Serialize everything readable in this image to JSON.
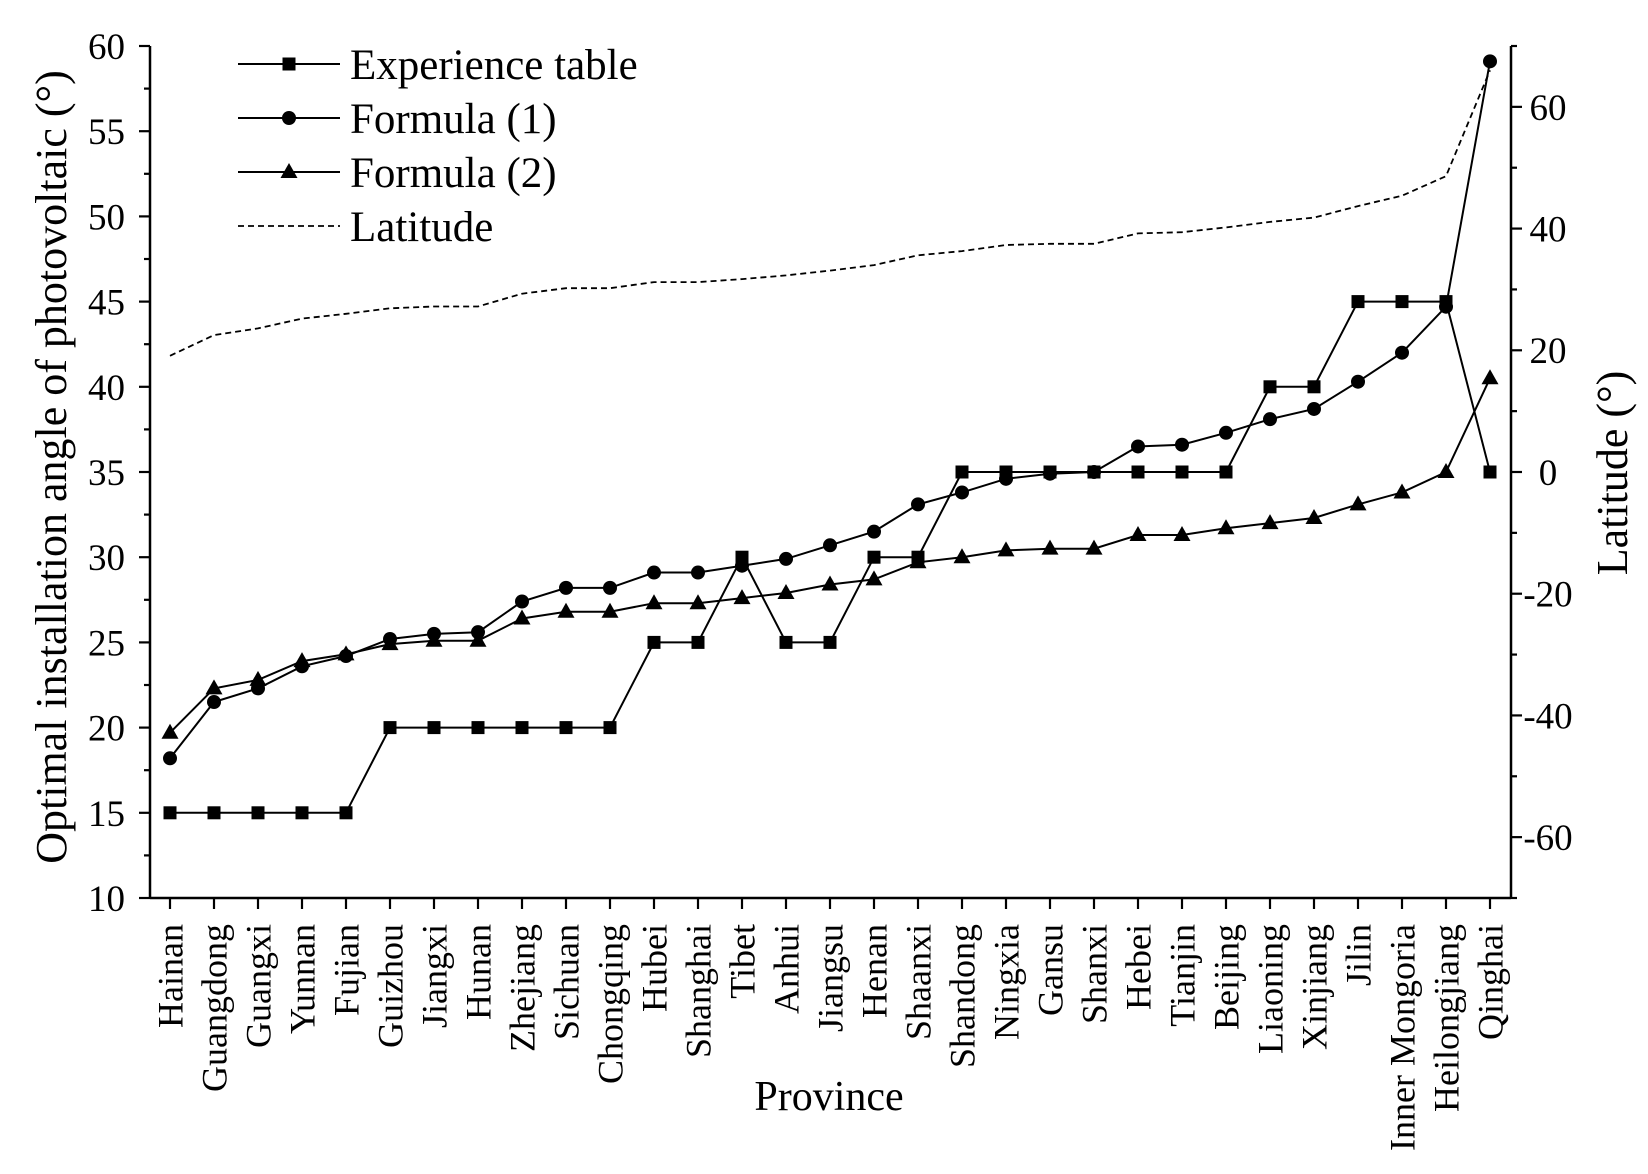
{
  "chart_data": {
    "type": "line",
    "xlabel": "Province",
    "ylabel": "Optimal installation angle of photovoltaic (°)",
    "y2label": "Latitude (°)",
    "ylim": [
      10,
      60
    ],
    "y2lim": [
      -70,
      70
    ],
    "yticks": [
      10,
      15,
      20,
      25,
      30,
      35,
      40,
      45,
      50,
      55,
      60
    ],
    "y2ticks": [
      -60,
      -40,
      -20,
      0,
      20,
      40,
      60
    ],
    "legend_position": "top-left",
    "categories": [
      "Hainan",
      "Guangdong",
      "Guangxi",
      "Yunnan",
      "Fujian",
      "Guizhou",
      "Jiangxi",
      "Hunan",
      "Zhejiang",
      "Sichuan",
      "Chongqing",
      "Hubei",
      "Shanghai",
      "Tibet",
      "Anhui",
      "Jiangsu",
      "Henan",
      "Shaanxi",
      "Shandong",
      "Ningxia",
      "Gansu",
      "Shanxi",
      "Hebei",
      "Tianjin",
      "Beijing",
      "Liaoning",
      "Xinjiang",
      "Jilin",
      "Inner Mongoria",
      "Heilongjiang",
      "Qinghai"
    ],
    "series": [
      {
        "name": "Experience table",
        "values": [
          15,
          15,
          15,
          15,
          15,
          20,
          20,
          20,
          20,
          20,
          20,
          25,
          25,
          30,
          25,
          25,
          30,
          30,
          35,
          35,
          35,
          35,
          35,
          35,
          35,
          40,
          40,
          45,
          45,
          45,
          35
        ]
      },
      {
        "name": "Formula (1)",
        "values": [
          18.2,
          21.5,
          22.3,
          23.6,
          24.2,
          25.2,
          25.5,
          25.6,
          27.4,
          28.2,
          28.2,
          29.1,
          29.1,
          29.5,
          29.9,
          30.7,
          31.5,
          33.1,
          33.8,
          34.6,
          34.9,
          35.0,
          36.5,
          36.6,
          37.3,
          38.1,
          38.7,
          40.3,
          42.0,
          44.7,
          59.1
        ]
      },
      {
        "name": "Formula (2)",
        "values": [
          19.7,
          22.3,
          22.8,
          23.9,
          24.3,
          24.9,
          25.1,
          25.1,
          26.4,
          26.8,
          26.8,
          27.3,
          27.3,
          27.6,
          27.9,
          28.4,
          28.7,
          29.7,
          30.0,
          30.4,
          30.5,
          30.5,
          31.3,
          31.3,
          31.7,
          32.0,
          32.3,
          33.1,
          33.8,
          35.0,
          40.5
        ]
      }
    ],
    "secondary_series": [
      {
        "name": "Latitude",
        "values": [
          19.1,
          22.5,
          23.6,
          25.2,
          26.0,
          26.9,
          27.2,
          27.2,
          29.3,
          30.2,
          30.2,
          31.2,
          31.2,
          31.7,
          32.3,
          33.1,
          34.0,
          35.6,
          36.3,
          37.3,
          37.5,
          37.5,
          39.2,
          39.4,
          40.2,
          41.1,
          41.8,
          43.7,
          45.4,
          48.6,
          66.0
        ]
      }
    ]
  }
}
